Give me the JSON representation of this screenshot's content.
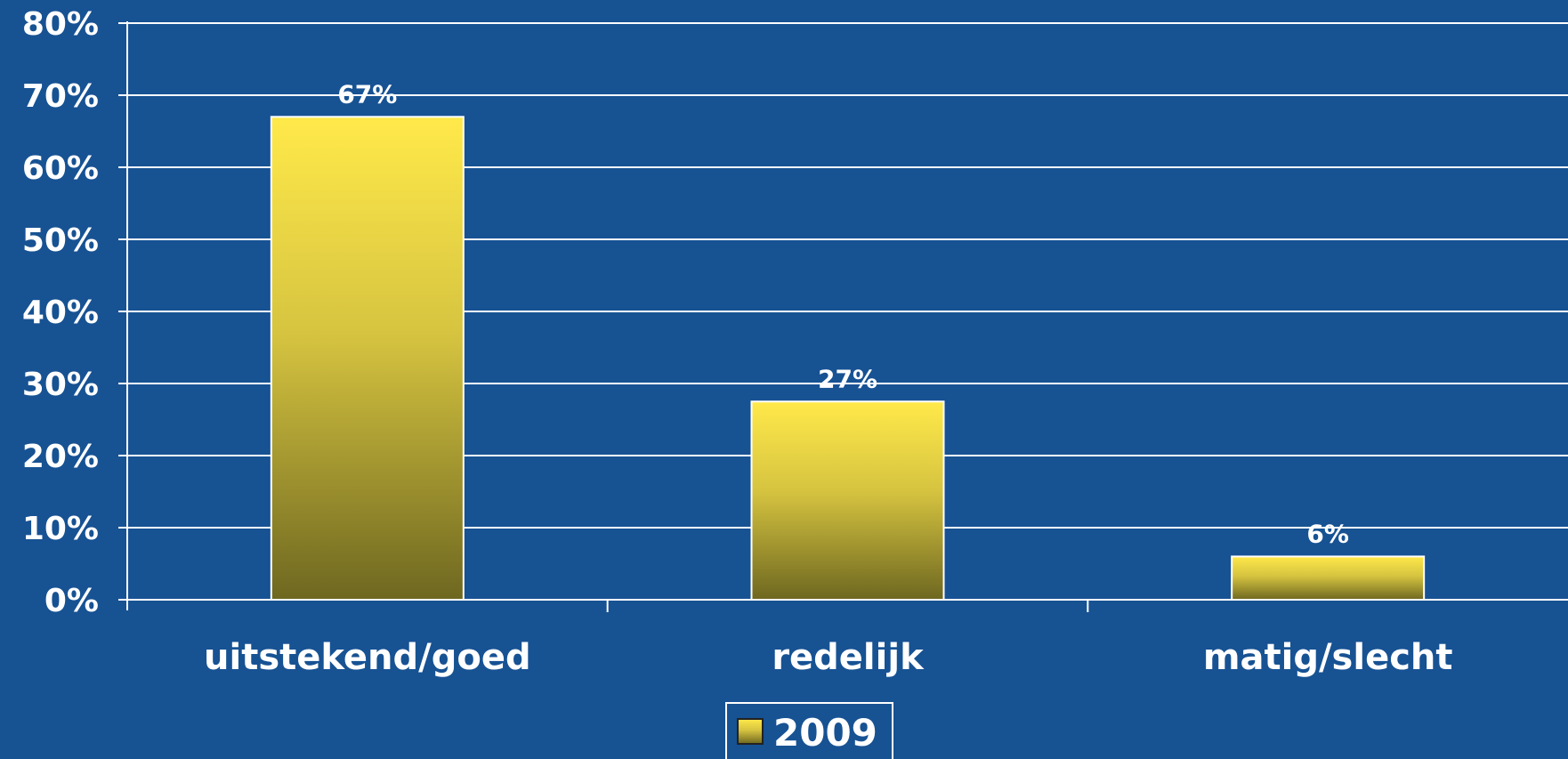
{
  "chart_data": {
    "type": "bar",
    "categories": [
      "uitstekend/goed",
      "redelijk",
      "matig/slecht"
    ],
    "series": [
      {
        "name": "2009",
        "values": [
          67,
          27.5,
          6
        ]
      }
    ],
    "data_labels": [
      "67%",
      "27%",
      "6%"
    ],
    "title": "",
    "xlabel": "",
    "ylabel": "",
    "ylim": [
      0,
      80
    ],
    "yticks": [
      0,
      10,
      20,
      30,
      40,
      50,
      60,
      70,
      80
    ],
    "ytick_labels": [
      "0%",
      "10%",
      "20%",
      "30%",
      "40%",
      "50%",
      "60%",
      "70%",
      "80%"
    ],
    "grid": true,
    "legend_position": "bottom",
    "colors": {
      "background": "#175293",
      "grid": "#ffffff",
      "bar_top": "#ffe94a",
      "bar_bottom": "#6e6720",
      "bar_border": "#ffffff",
      "text": "#ffffff"
    }
  }
}
